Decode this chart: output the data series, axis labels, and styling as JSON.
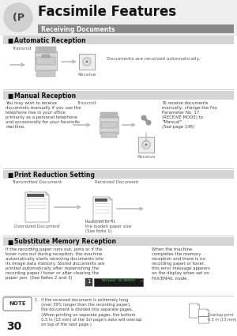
{
  "title": "Facsimile Features",
  "subtitle": "Receiving Documents",
  "bg_color": "#ffffff",
  "page_number": "30",
  "sections": [
    "Automatic Reception",
    "Manual Reception",
    "Print Reduction Setting",
    "Substitute Memory Reception"
  ],
  "auto_reception_text": "Documents are received automatically.",
  "auto_transmit_label": "Transmit",
  "auto_receive_label": "Receive",
  "manual_text": "You may wish to receive\ndocuments manually if you use the\ntelephone line in your office\nprimarily as a personal telephone\nand occasionally for your facsimile\nmachine.",
  "manual_transmit_label": "Transmit",
  "manual_receive_label": "Receive",
  "manual_right_text": "To receive documents\nmanually, change the Fax\nParameter No. 17\n(RECEIVE MODE) to\n\"Manual\"\n(See page 148)",
  "print_label_tx": "Transmitted Document",
  "print_label_rx": "Received Document",
  "print_label_over": "Oversized Document",
  "print_label_reduced": "Reduced to fit\nthe loaded paper size\n(See Note 1)",
  "substitute_text": "If the recording paper runs out, jams or if the\ntoner runs out during reception, the machine\nautomatically starts receiving documents into\nits image data memory. Stored documents are\nprinted automatically after replenishing the\nrecording paper / toner or after clearing the\npaper jam. (See Notes 2 and 3)",
  "display_text": "MESSAGE IN MEMORY",
  "substitute_right_text": "When the machine\ncompletes the memory\nreception and there is no\nrecording paper or toner,\nthis error message appears\non the display when set on\nFAX/EMAIL mode.",
  "note_text": "1.  If the received document is extremely long\n     (over 39% longer than the recording paper),\n     the document is divided into separate pages.\n     (When printing on separate pages, the bottom\n     0.5 in (13 mm) of the 1st page's data will overlap\n     on top of the next page.)",
  "note_overlap_text": "Overlap print\n0.5 in (13 mm)"
}
